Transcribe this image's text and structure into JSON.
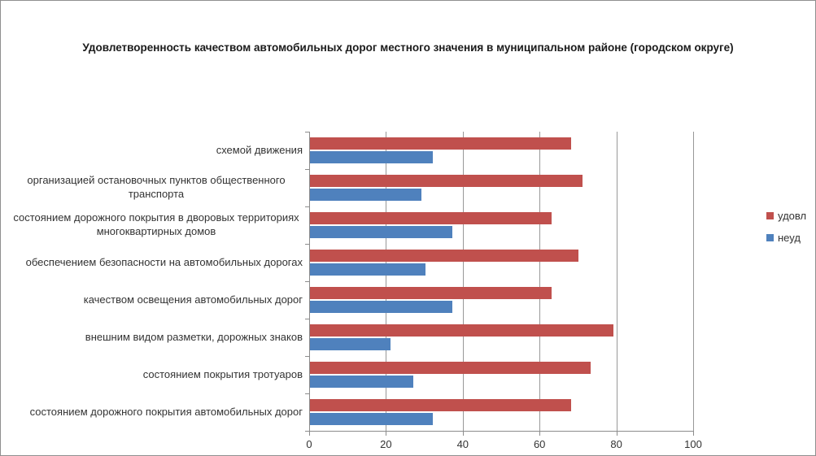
{
  "title": "Удовлетворенность качеством автомобильных дорог местного значения в муниципальном районе (городском округе)",
  "chart_data": {
    "type": "bar",
    "orientation": "horizontal",
    "title": "Удовлетворенность качеством автомобильных дорог местного значения в муниципальном районе (городском округе)",
    "categories": [
      "схемой движения",
      "организацией остановочных пунктов общественного транспорта",
      "состоянием дорожного покрытия в дворовых территориях многоквартирных домов",
      "обеспечением  безопасности на автомобильных дорогах",
      "качеством освещения  автомобильных дорог",
      "внешним  видом разметки, дорожных знаков",
      "состоянием покрытия тротуаров",
      "состоянием дорожного покрытия автомобильных дорог"
    ],
    "series": [
      {
        "name": "удовл",
        "color": "#C0504D",
        "values": [
          68,
          71,
          63,
          70,
          63,
          79,
          73,
          68
        ]
      },
      {
        "name": "неуд",
        "color": "#4F81BD",
        "values": [
          32,
          29,
          37,
          30,
          37,
          21,
          27,
          32
        ]
      }
    ],
    "xlabel": "",
    "ylabel": "",
    "xlim": [
      0,
      100
    ],
    "x_ticks": [
      0,
      20,
      40,
      60,
      80,
      100
    ],
    "grid": "vertical",
    "legend_position": "right",
    "colors": {
      "grid": "#989898",
      "axis": "#8c8c8c",
      "background": "#ffffff",
      "border": "#8f8f8f"
    }
  }
}
